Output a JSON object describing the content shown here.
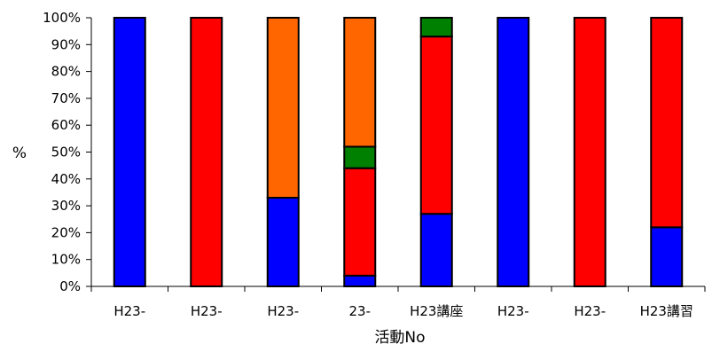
{
  "chart_data": {
    "type": "bar",
    "stacked": true,
    "normalized_percent": true,
    "title": "",
    "xlabel": "活動No",
    "ylabel": "%",
    "ylim": [
      0,
      100
    ],
    "y_ticks": [
      "0%",
      "10%",
      "20%",
      "30%",
      "40%",
      "50%",
      "60%",
      "70%",
      "80%",
      "90%",
      "100%"
    ],
    "grid": false,
    "legend": "none",
    "categories": [
      "H23-",
      "H23-",
      "H23-",
      "23-",
      "H23講座",
      "H23-",
      "H23-",
      "H23講習"
    ],
    "series": [
      {
        "color": "#0000ff",
        "values": [
          100,
          0,
          33,
          4,
          27,
          100,
          0,
          22
        ]
      },
      {
        "color": "#ff0000",
        "values": [
          0,
          100,
          0,
          40,
          66,
          0,
          100,
          78
        ]
      },
      {
        "color": "#008000",
        "values": [
          0,
          0,
          0,
          8,
          7,
          0,
          0,
          0
        ]
      },
      {
        "color": "#ff6600",
        "values": [
          0,
          0,
          67,
          48,
          0,
          0,
          0,
          0
        ]
      }
    ]
  }
}
